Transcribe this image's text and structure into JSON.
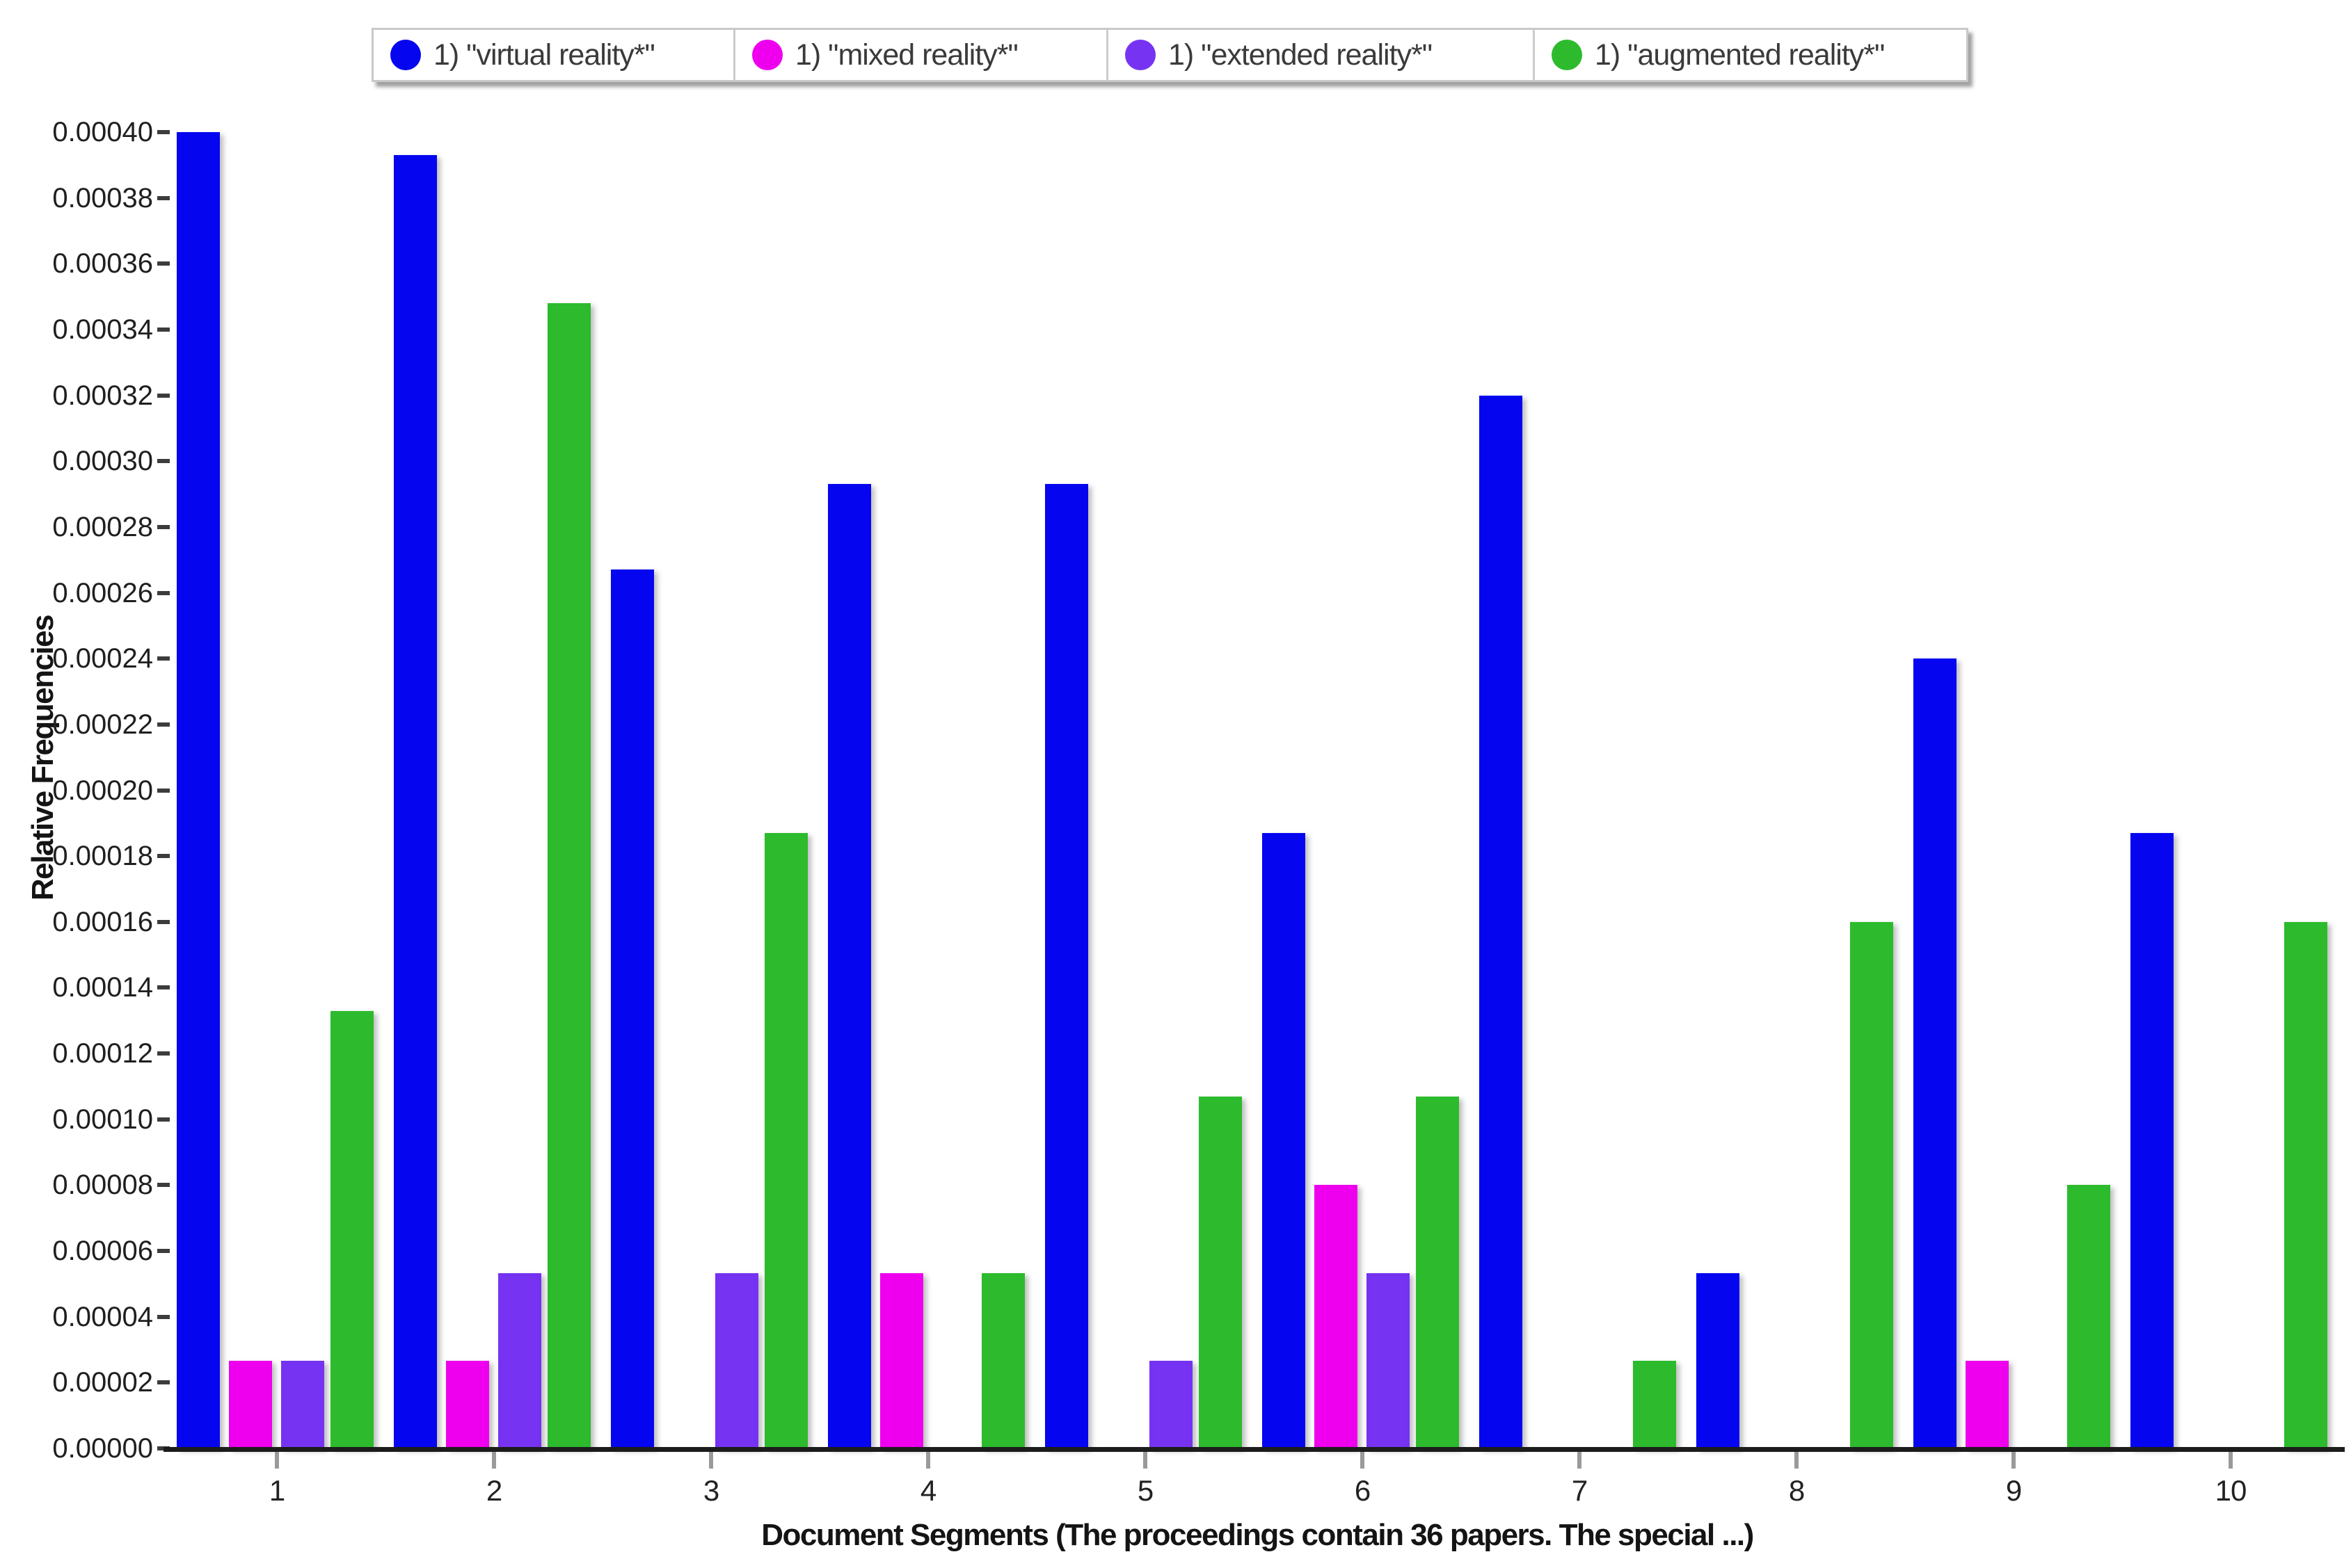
{
  "chart_data": {
    "type": "bar",
    "title": "",
    "xlabel": "Document Segments (The proceedings contain 36 papers. The special ...)",
    "ylabel": "Relative Frequencies",
    "categories": [
      "1",
      "2",
      "3",
      "4",
      "5",
      "6",
      "7",
      "8",
      "9",
      "10"
    ],
    "y_tick_labels": [
      "0.00000",
      "0.00002",
      "0.00004",
      "0.00006",
      "0.00008",
      "0.00010",
      "0.00012",
      "0.00014",
      "0.00016",
      "0.00018",
      "0.00020",
      "0.00022",
      "0.00024",
      "0.00026",
      "0.00028",
      "0.00030",
      "0.00032",
      "0.00034",
      "0.00036",
      "0.00038",
      "0.00040"
    ],
    "y_tick_step": 2e-05,
    "ylim": [
      0,
      0.0004
    ],
    "grid": false,
    "legend_position": "top-center",
    "series": [
      {
        "key": "virtual-reality",
        "name": "1) \"virtual reality*\"",
        "color": "#0505f0",
        "values": [
          0.0004,
          0.000393,
          0.000267,
          0.000293,
          0.000293,
          0.000187,
          0.00032,
          5.33e-05,
          0.00024,
          0.000187
        ]
      },
      {
        "key": "mixed-reality",
        "name": "1) \"mixed reality*\"",
        "color": "#ee00ee",
        "values": [
          2.67e-05,
          2.67e-05,
          0,
          5.33e-05,
          0,
          8e-05,
          0,
          0,
          2.67e-05,
          0
        ]
      },
      {
        "key": "extended-reality",
        "name": "1) \"extended reality*\"",
        "color": "#7733f2",
        "values": [
          2.67e-05,
          5.33e-05,
          5.33e-05,
          0,
          2.67e-05,
          5.33e-05,
          0,
          0,
          0,
          0
        ]
      },
      {
        "key": "augmented-reality",
        "name": "1) \"augmented reality*\"",
        "color": "#2dbb2d",
        "values": [
          0.000133,
          0.000348,
          0.000187,
          5.33e-05,
          0.000107,
          0.000107,
          2.67e-05,
          0.00016,
          8e-05,
          0.00016
        ]
      }
    ]
  }
}
